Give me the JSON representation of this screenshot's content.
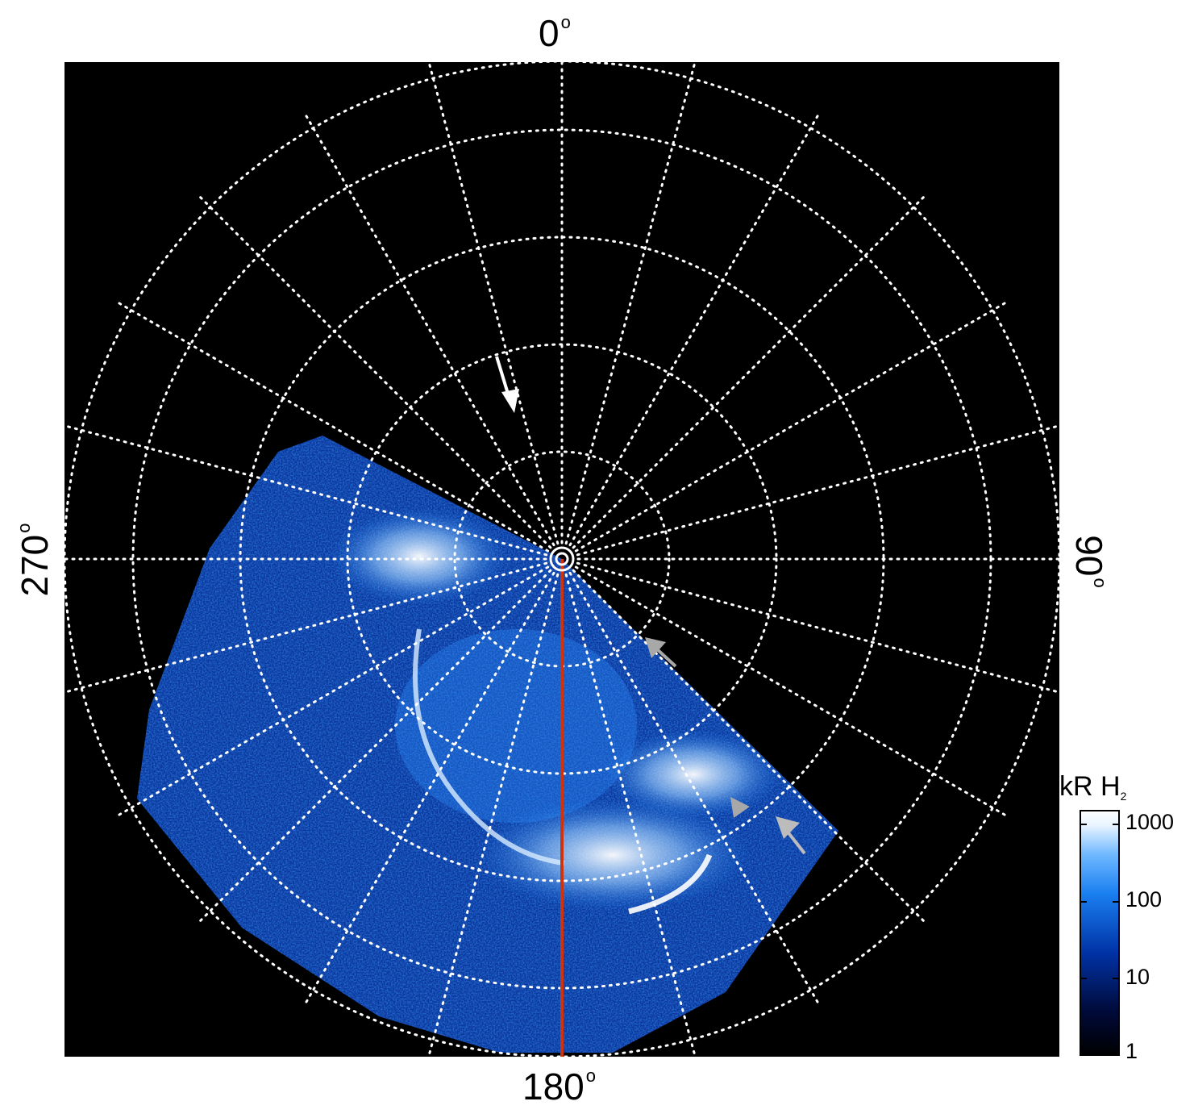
{
  "axis_labels": {
    "top": "0",
    "bottom": "180",
    "left": "270",
    "right": "90",
    "degree_symbol": "o"
  },
  "colorbar": {
    "title_main": "kR H",
    "title_sub": "2",
    "ticks": [
      "1000",
      "100",
      "10",
      "1"
    ],
    "scale": "log",
    "range": [
      1,
      1000
    ],
    "colors": [
      "#000000",
      "#000a3a",
      "#0033a6",
      "#1a7ff0",
      "#6fb8ff",
      "#e8f4ff",
      "#ffffff"
    ]
  },
  "image": {
    "background": "#000000",
    "grid_color": "#ffffff",
    "meridian_line_color": "#cc3311",
    "aurora_color": "#1a7ff0",
    "arrow_colors": {
      "white": "#ffffff",
      "gray": "#a8a8a8"
    }
  }
}
